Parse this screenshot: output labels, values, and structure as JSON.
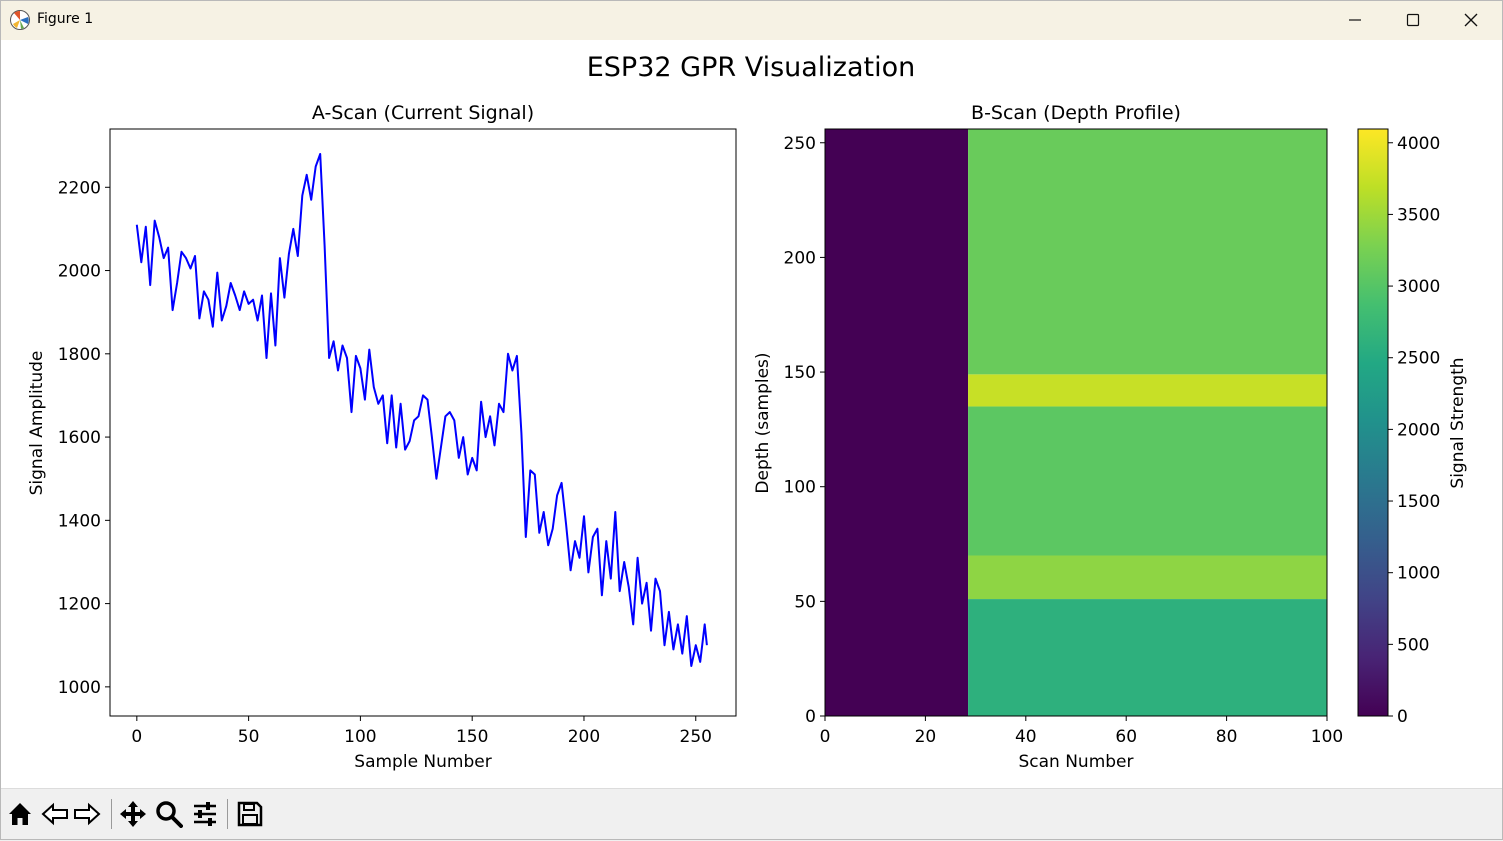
{
  "window": {
    "title": "Figure 1"
  },
  "figure": {
    "suptitle": "ESP32 GPR Visualization"
  },
  "colors": {
    "line": "#0000ff",
    "window_bar": "#f6f2e4",
    "toolbar": "#f0f0f0"
  },
  "toolbar": {
    "buttons": [
      "home-icon",
      "back-arrow-icon",
      "forward-arrow-icon",
      "pan-move-icon",
      "zoom-magnifier-icon",
      "configure-subplots-icon",
      "save-floppy-icon"
    ]
  },
  "chart_data": [
    {
      "type": "line",
      "title": "A-Scan (Current Signal)",
      "xlabel": "Sample Number",
      "ylabel": "Signal Amplitude",
      "xlim": [
        -12,
        268
      ],
      "ylim": [
        930,
        2340
      ],
      "xticks": [
        0,
        50,
        100,
        150,
        200,
        250
      ],
      "yticks": [
        1000,
        1200,
        1400,
        1600,
        1800,
        2000,
        2200
      ],
      "grid": false,
      "series": [
        {
          "color": "#0000ff",
          "x": [
            0,
            2,
            4,
            6,
            8,
            10,
            12,
            14,
            16,
            18,
            20,
            22,
            24,
            26,
            28,
            30,
            32,
            34,
            36,
            38,
            40,
            42,
            44,
            46,
            48,
            50,
            52,
            54,
            56,
            58,
            60,
            62,
            64,
            66,
            68,
            70,
            72,
            74,
            76,
            78,
            80,
            82,
            84,
            86,
            88,
            90,
            92,
            94,
            96,
            98,
            100,
            102,
            104,
            106,
            108,
            110,
            112,
            114,
            116,
            118,
            120,
            122,
            124,
            126,
            128,
            130,
            132,
            134,
            136,
            138,
            140,
            142,
            144,
            146,
            148,
            150,
            152,
            154,
            156,
            158,
            160,
            162,
            164,
            166,
            168,
            170,
            172,
            174,
            176,
            178,
            180,
            182,
            184,
            186,
            188,
            190,
            192,
            194,
            196,
            198,
            200,
            202,
            204,
            206,
            208,
            210,
            212,
            214,
            216,
            218,
            220,
            222,
            224,
            226,
            228,
            230,
            232,
            234,
            236,
            238,
            240,
            242,
            244,
            246,
            248,
            250,
            252,
            254,
            255
          ],
          "y": [
            2110,
            2020,
            2105,
            1965,
            2120,
            2080,
            2030,
            2055,
            1905,
            1970,
            2045,
            2030,
            2005,
            2035,
            1885,
            1950,
            1930,
            1865,
            1995,
            1880,
            1915,
            1970,
            1940,
            1905,
            1950,
            1920,
            1930,
            1880,
            1940,
            1790,
            1945,
            1820,
            2030,
            1935,
            2040,
            2100,
            2035,
            2180,
            2230,
            2170,
            2250,
            2280,
            2060,
            1790,
            1830,
            1760,
            1820,
            1790,
            1660,
            1795,
            1765,
            1690,
            1810,
            1720,
            1680,
            1700,
            1585,
            1700,
            1575,
            1680,
            1570,
            1590,
            1640,
            1650,
            1700,
            1690,
            1600,
            1500,
            1575,
            1650,
            1660,
            1640,
            1550,
            1600,
            1510,
            1550,
            1520,
            1685,
            1600,
            1650,
            1580,
            1680,
            1660,
            1800,
            1760,
            1795,
            1610,
            1360,
            1520,
            1510,
            1370,
            1420,
            1340,
            1380,
            1460,
            1490,
            1390,
            1280,
            1350,
            1310,
            1410,
            1275,
            1360,
            1380,
            1220,
            1350,
            1260,
            1420,
            1230,
            1300,
            1240,
            1150,
            1310,
            1200,
            1250,
            1135,
            1260,
            1230,
            1100,
            1180,
            1090,
            1150,
            1080,
            1170,
            1050,
            1100,
            1060,
            1150,
            1100
          ],
          "name": ""
        }
      ]
    },
    {
      "type": "heatmap",
      "title": "B-Scan (Depth Profile)",
      "xlabel": "Scan Number",
      "ylabel": "Depth (samples)",
      "xlim": [
        0,
        100
      ],
      "ylim": [
        0,
        256
      ],
      "xticks": [
        0,
        20,
        40,
        60,
        80,
        100
      ],
      "yticks": [
        0,
        50,
        100,
        150,
        200,
        250
      ],
      "colormap": "viridis",
      "data_start_scan": 28.5,
      "bands": [
        {
          "from": 0,
          "to": 51,
          "value": 2600
        },
        {
          "from": 51,
          "to": 70,
          "value": 3400
        },
        {
          "from": 70,
          "to": 135,
          "value": 3050
        },
        {
          "from": 135,
          "to": 149,
          "value": 3750
        },
        {
          "from": 149,
          "to": 256,
          "value": 3150
        }
      ],
      "colorbar": {
        "label": "Signal Strength",
        "range": [
          0,
          4096
        ],
        "ticks": [
          0,
          500,
          1000,
          1500,
          2000,
          2500,
          3000,
          3500,
          4000
        ]
      }
    }
  ]
}
